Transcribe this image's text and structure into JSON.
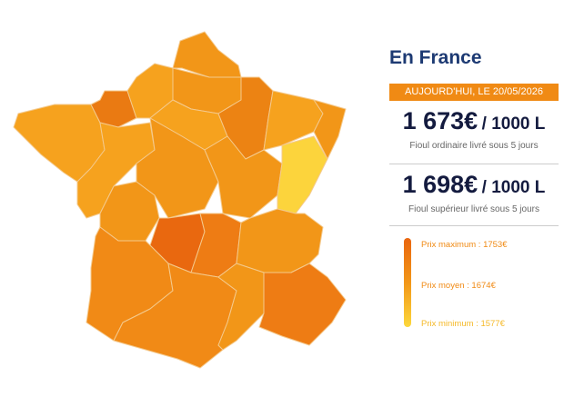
{
  "header": {
    "title": "En France",
    "date": "AUJOURD'HUI, LE 20/05/2026"
  },
  "prices": [
    {
      "price": "1 673€",
      "unit": "/ 1000 L",
      "description": "Fioul ordinaire livré sous 5 jours"
    },
    {
      "price": "1 698€",
      "unit": "/ 1000 L",
      "description": "Fioul supérieur livré sous 5 jours"
    }
  ],
  "legend": [
    "Prix maximum : 1753€",
    "Prix moyen : 1674€",
    "Prix minimum : 1577€"
  ]
}
